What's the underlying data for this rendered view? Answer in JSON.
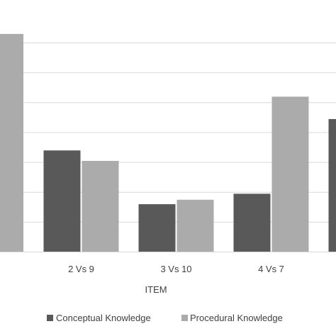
{
  "chart_data": {
    "type": "bar",
    "xlabel": "ITEM",
    "ylabel": "",
    "categories": [
      "",
      "2 Vs 9",
      "3 Vs 10",
      "4 Vs 7",
      ""
    ],
    "series": [
      {
        "name": "Conceptual Knowledge",
        "color": "#595959",
        "values": [
          null,
          34,
          16,
          19.5,
          44.5
        ]
      },
      {
        "name": "Procedural Knowledge",
        "color": "#ababab",
        "values": [
          73,
          30.5,
          17.5,
          52,
          null
        ]
      }
    ],
    "ylim": [
      0,
      80
    ],
    "grid": true,
    "legend_position": "bottom"
  }
}
